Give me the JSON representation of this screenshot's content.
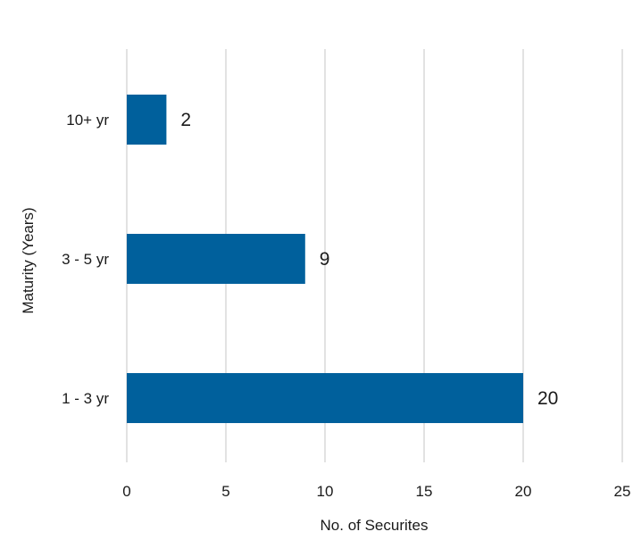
{
  "chart_data": {
    "type": "bar",
    "orientation": "horizontal",
    "categories": [
      "10+ yr",
      "3 - 5 yr",
      "1 - 3 yr"
    ],
    "values": [
      2,
      9,
      20
    ],
    "data_labels": [
      "2",
      "9",
      "20"
    ],
    "xlabel": "No. of Securites",
    "ylabel": "Maturity (Years)",
    "xlim": [
      0,
      25
    ],
    "x_ticks": [
      0,
      5,
      10,
      15,
      20,
      25
    ],
    "x_tick_labels": [
      "0",
      "5",
      "10",
      "15",
      "20",
      "25"
    ],
    "grid": "vertical",
    "legend": "none",
    "colors": {
      "bar": "#00609c",
      "grid": "#d9d9d9",
      "text": "#1a1a1a"
    }
  }
}
